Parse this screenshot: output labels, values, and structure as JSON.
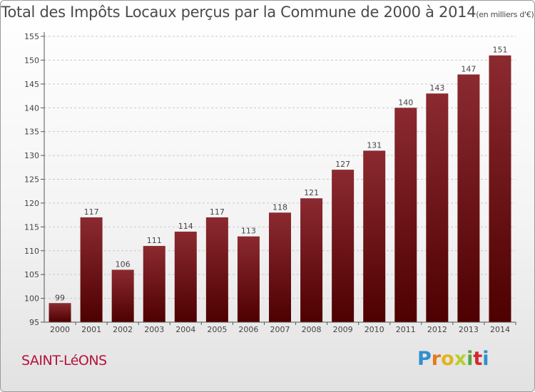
{
  "title": "Total des Impôts Locaux perçus par la Commune de 2000 à 2014",
  "unit": "(en milliers d'€)",
  "commune": "SAINT-LéONS",
  "brand": "Proxiti",
  "colors": {
    "bar_top": "#8b2a30",
    "bar_bottom": "#4e0000",
    "grid": "#c8c8c8",
    "axis": "#555555",
    "commune_text": "#b5123c"
  },
  "chart_data": {
    "type": "bar",
    "title": "Total des Impôts Locaux perçus par la Commune de 2000 à 2014",
    "xlabel": "",
    "ylabel": "(en milliers d'€)",
    "ylim": [
      95,
      155
    ],
    "yticks": [
      95,
      100,
      105,
      110,
      115,
      120,
      125,
      130,
      135,
      140,
      145,
      150,
      155
    ],
    "categories": [
      "2000",
      "2001",
      "2002",
      "2003",
      "2004",
      "2005",
      "2006",
      "2007",
      "2008",
      "2009",
      "2010",
      "2011",
      "2012",
      "2013",
      "2014"
    ],
    "values": [
      99,
      117,
      106,
      111,
      114,
      117,
      113,
      118,
      121,
      127,
      131,
      140,
      143,
      147,
      151
    ]
  }
}
